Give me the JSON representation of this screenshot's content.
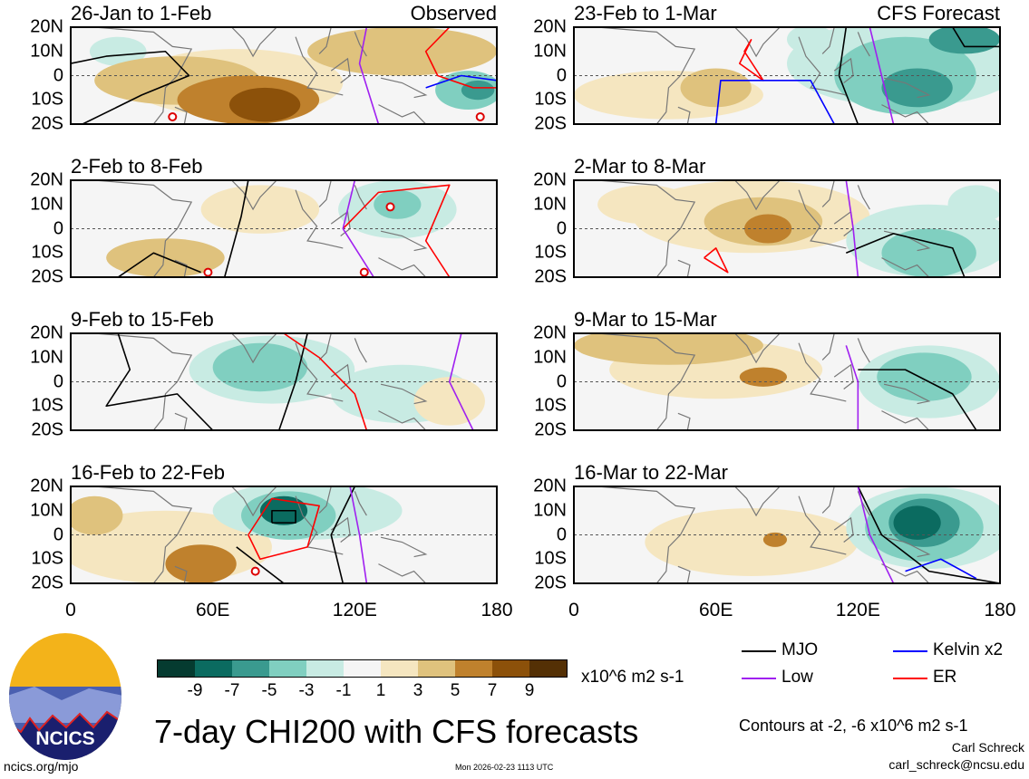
{
  "title": "7-day CHI200 with CFS forecasts",
  "units": "x10^6 m2 s-1",
  "contour_note": "Contours at -2, -6 x10^6 m2 s-1",
  "author": "Carl Schreck",
  "email": "carl_schreck@ncsu.edu",
  "website": "ncics.org/mjo",
  "timestamp": "Mon 2026-02-23 1113 UTC",
  "logo_text": "NCICS",
  "y_ticks": [
    "20N",
    "10N",
    "0",
    "10S",
    "20S"
  ],
  "x_ticks": [
    "0",
    "60E",
    "120E",
    "180"
  ],
  "colorbar": {
    "labels": [
      "-9",
      "-7",
      "-5",
      "-3",
      "-1",
      "1",
      "3",
      "5",
      "7",
      "9"
    ],
    "colors": [
      "#053b30",
      "#0b6b60",
      "#3a9a8f",
      "#80cfc0",
      "#c8ebe3",
      "#f5f5f5",
      "#f5e6c0",
      "#dfc27d",
      "#bf812d",
      "#8c510a",
      "#543005"
    ]
  },
  "legend": [
    {
      "label": "MJO",
      "color": "#000000"
    },
    {
      "label": "Kelvin x2",
      "color": "#0000ff"
    },
    {
      "label": "Low",
      "color": "#a020f0"
    },
    {
      "label": "ER",
      "color": "#ff0000"
    }
  ],
  "panels": [
    {
      "label": "26-Jan to 1-Feb",
      "tag": "Observed",
      "anomalies": [
        [
          70,
          -3,
          45,
          14,
          2
        ],
        [
          75,
          -10,
          30,
          10,
          5
        ],
        [
          82,
          -12,
          15,
          7,
          8
        ],
        [
          45,
          -2,
          35,
          10,
          3
        ],
        [
          140,
          10,
          40,
          10,
          3
        ],
        [
          20,
          10,
          12,
          6,
          -2
        ],
        [
          168,
          -6,
          14,
          8,
          -4
        ],
        [
          172,
          -6,
          7,
          4,
          -7
        ]
      ],
      "contours": [
        {
          "type": "MJO",
          "pts": [
            [
              0,
              5
            ],
            [
              15,
              8
            ],
            [
              40,
              10
            ],
            [
              50,
              0
            ],
            [
              30,
              -8
            ],
            [
              5,
              -20
            ]
          ]
        },
        {
          "type": "ER",
          "pts": [
            [
              160,
              20
            ],
            [
              150,
              10
            ],
            [
              155,
              0
            ],
            [
              170,
              -5
            ],
            [
              180,
              -5
            ]
          ]
        },
        {
          "type": "Kelvin",
          "pts": [
            [
              150,
              -5
            ],
            [
              165,
              0
            ],
            [
              180,
              -2
            ]
          ]
        },
        {
          "type": "Low",
          "pts": [
            [
              125,
              20
            ],
            [
              122,
              5
            ],
            [
              130,
              -20
            ]
          ]
        }
      ],
      "cyclones": [
        [
          43,
          -17
        ],
        [
          173,
          -17
        ]
      ]
    },
    {
      "label": "23-Feb to 1-Mar",
      "tag": "CFS Forecast",
      "anomalies": [
        [
          140,
          5,
          50,
          18,
          -3
        ],
        [
          140,
          0,
          30,
          16,
          -5
        ],
        [
          145,
          -5,
          15,
          8,
          -7
        ],
        [
          165,
          15,
          15,
          6,
          -7
        ],
        [
          40,
          -8,
          40,
          10,
          2
        ],
        [
          60,
          -5,
          15,
          8,
          4
        ],
        [
          100,
          15,
          10,
          6,
          -2
        ]
      ],
      "contours": [
        {
          "type": "MJO",
          "pts": [
            [
              115,
              20
            ],
            [
              112,
              0
            ],
            [
              120,
              -20
            ]
          ]
        },
        {
          "type": "MJO",
          "pts": [
            [
              160,
              20
            ],
            [
              165,
              12
            ],
            [
              180,
              12
            ]
          ]
        },
        {
          "type": "ER",
          "pts": [
            [
              75,
              15
            ],
            [
              70,
              5
            ],
            [
              80,
              -2
            ],
            [
              72,
              10
            ],
            [
              75,
              15
            ]
          ]
        },
        {
          "type": "Kelvin",
          "pts": [
            [
              60,
              -20
            ],
            [
              62,
              -2
            ],
            [
              100,
              -2
            ],
            [
              110,
              -20
            ]
          ]
        },
        {
          "type": "Low",
          "pts": [
            [
              125,
              20
            ],
            [
              130,
              0
            ],
            [
              135,
              -20
            ]
          ]
        }
      ],
      "cyclones": []
    },
    {
      "label": "2-Feb to 8-Feb",
      "tag": "",
      "anomalies": [
        [
          138,
          8,
          25,
          12,
          -3
        ],
        [
          138,
          10,
          10,
          6,
          -5
        ],
        [
          40,
          -12,
          25,
          8,
          3
        ],
        [
          80,
          8,
          25,
          10,
          1
        ],
        [
          170,
          -8,
          10,
          8,
          -1
        ]
      ],
      "contours": [
        {
          "type": "MJO",
          "pts": [
            [
              20,
              -20
            ],
            [
              35,
              -10
            ],
            [
              55,
              -18
            ]
          ]
        },
        {
          "type": "MJO",
          "pts": [
            [
              75,
              20
            ],
            [
              72,
              5
            ],
            [
              65,
              -20
            ]
          ]
        },
        {
          "type": "ER",
          "pts": [
            [
              115,
              0
            ],
            [
              130,
              15
            ],
            [
              160,
              18
            ],
            [
              150,
              -5
            ],
            [
              160,
              -20
            ]
          ]
        },
        {
          "type": "Low",
          "pts": [
            [
              120,
              20
            ],
            [
              115,
              0
            ],
            [
              128,
              -20
            ]
          ]
        }
      ],
      "cyclones": [
        [
          58,
          -18
        ],
        [
          124,
          -18
        ],
        [
          135,
          9
        ]
      ]
    },
    {
      "label": "2-Mar to 8-Mar",
      "tag": "",
      "anomalies": [
        [
          75,
          5,
          50,
          15,
          2
        ],
        [
          80,
          3,
          25,
          10,
          3
        ],
        [
          82,
          0,
          10,
          6,
          5
        ],
        [
          30,
          10,
          20,
          8,
          2
        ],
        [
          150,
          -5,
          35,
          15,
          -3
        ],
        [
          150,
          -10,
          20,
          10,
          -5
        ],
        [
          170,
          10,
          12,
          8,
          -3
        ]
      ],
      "contours": [
        {
          "type": "MJO",
          "pts": [
            [
              115,
              -10
            ],
            [
              135,
              -2
            ],
            [
              160,
              -8
            ],
            [
              165,
              -20
            ]
          ]
        },
        {
          "type": "ER",
          "pts": [
            [
              55,
              -12
            ],
            [
              65,
              -18
            ],
            [
              60,
              -8
            ],
            [
              55,
              -12
            ]
          ]
        },
        {
          "type": "Low",
          "pts": [
            [
              115,
              20
            ],
            [
              118,
              0
            ],
            [
              120,
              -20
            ]
          ]
        }
      ],
      "cyclones": []
    },
    {
      "label": "9-Feb to 15-Feb",
      "tag": "",
      "anomalies": [
        [
          85,
          5,
          35,
          14,
          -3
        ],
        [
          80,
          6,
          20,
          10,
          -5
        ],
        [
          140,
          -5,
          30,
          12,
          -2
        ],
        [
          160,
          -8,
          15,
          10,
          2
        ]
      ],
      "contours": [
        {
          "type": "MJO",
          "pts": [
            [
              20,
              20
            ],
            [
              25,
              5
            ],
            [
              15,
              -10
            ],
            [
              45,
              -5
            ],
            [
              60,
              -20
            ]
          ]
        },
        {
          "type": "MJO",
          "pts": [
            [
              100,
              20
            ],
            [
              95,
              0
            ],
            [
              88,
              -20
            ]
          ]
        },
        {
          "type": "ER",
          "pts": [
            [
              90,
              20
            ],
            [
              105,
              10
            ],
            [
              120,
              -5
            ],
            [
              125,
              -20
            ]
          ]
        },
        {
          "type": "Low",
          "pts": [
            [
              165,
              20
            ],
            [
              160,
              0
            ],
            [
              170,
              -20
            ]
          ]
        }
      ],
      "cyclones": []
    },
    {
      "label": "9-Mar to 15-Mar",
      "tag": "",
      "anomalies": [
        [
          40,
          15,
          40,
          8,
          3
        ],
        [
          60,
          5,
          45,
          12,
          2
        ],
        [
          80,
          2,
          10,
          4,
          5
        ],
        [
          150,
          0,
          30,
          15,
          -3
        ],
        [
          148,
          2,
          20,
          10,
          -5
        ]
      ],
      "contours": [
        {
          "type": "MJO",
          "pts": [
            [
              120,
              5
            ],
            [
              140,
              5
            ],
            [
              160,
              -5
            ],
            [
              170,
              -20
            ]
          ]
        },
        {
          "type": "Low",
          "pts": [
            [
              115,
              15
            ],
            [
              120,
              0
            ],
            [
              120,
              -20
            ]
          ]
        }
      ],
      "cyclones": []
    },
    {
      "label": "16-Feb to 22-Feb",
      "tag": "",
      "anomalies": [
        [
          100,
          10,
          40,
          12,
          -3
        ],
        [
          92,
          8,
          20,
          10,
          -5
        ],
        [
          90,
          10,
          10,
          6,
          -9
        ],
        [
          40,
          -5,
          45,
          15,
          2
        ],
        [
          55,
          -12,
          15,
          8,
          5
        ],
        [
          10,
          8,
          12,
          8,
          3
        ]
      ],
      "contours": [
        {
          "type": "MJO",
          "pts": [
            [
              85,
              5
            ],
            [
              95,
              5
            ],
            [
              95,
              10
            ],
            [
              85,
              10
            ],
            [
              85,
              5
            ]
          ]
        },
        {
          "type": "MJO",
          "pts": [
            [
              70,
              -5
            ],
            [
              90,
              -20
            ]
          ]
        },
        {
          "type": "MJO",
          "pts": [
            [
              120,
              20
            ],
            [
              110,
              0
            ],
            [
              115,
              -20
            ]
          ]
        },
        {
          "type": "ER",
          "pts": [
            [
              75,
              0
            ],
            [
              85,
              15
            ],
            [
              105,
              12
            ],
            [
              100,
              -5
            ],
            [
              80,
              -10
            ],
            [
              75,
              0
            ]
          ]
        },
        {
          "type": "Low",
          "pts": [
            [
              118,
              20
            ],
            [
              122,
              0
            ],
            [
              125,
              -20
            ]
          ]
        }
      ],
      "cyclones": [
        [
          78,
          -15
        ]
      ]
    },
    {
      "label": "16-Mar to 22-Mar",
      "tag": "",
      "anomalies": [
        [
          150,
          3,
          35,
          17,
          -3
        ],
        [
          148,
          3,
          25,
          14,
          -5
        ],
        [
          148,
          5,
          15,
          10,
          -7
        ],
        [
          145,
          5,
          10,
          7,
          -9
        ],
        [
          75,
          -3,
          45,
          14,
          2
        ],
        [
          85,
          -2,
          5,
          3,
          5
        ]
      ],
      "contours": [
        {
          "type": "MJO",
          "pts": [
            [
              120,
              20
            ],
            [
              130,
              0
            ],
            [
              150,
              -15
            ],
            [
              180,
              -20
            ]
          ]
        },
        {
          "type": "Kelvin",
          "pts": [
            [
              140,
              -15
            ],
            [
              155,
              -10
            ],
            [
              170,
              -18
            ]
          ]
        },
        {
          "type": "Low",
          "pts": [
            [
              120,
              20
            ],
            [
              125,
              0
            ],
            [
              135,
              -20
            ]
          ]
        }
      ],
      "cyclones": []
    }
  ]
}
